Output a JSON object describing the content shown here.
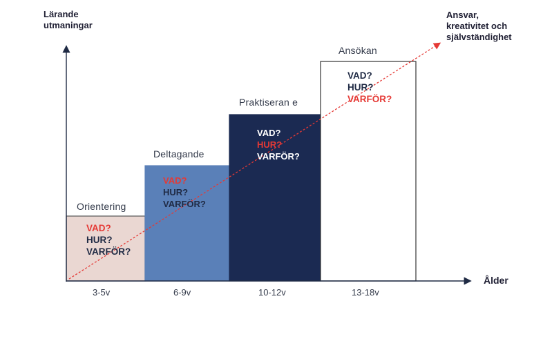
{
  "axes": {
    "y_label_line1": "Lärande",
    "y_label_line2": "utmaningar",
    "x_label": "Ålder",
    "goal_line1": "Ansvar,",
    "goal_line2": "kreativitet och",
    "goal_line3": "självständighet"
  },
  "stages": [
    {
      "title": "Orientering",
      "age": "3-5v",
      "fill": "#ead7d2",
      "stroke": "#555555",
      "questions": [
        {
          "text": "VAD?",
          "color": "#e53935"
        },
        {
          "text": "HUR?",
          "color": "#1f2a44"
        },
        {
          "text": "VARFÖR?",
          "color": "#1f2a44"
        }
      ]
    },
    {
      "title": "Deltagande",
      "age": "6-9v",
      "fill": "#5a80b8",
      "stroke": "#5a80b8",
      "questions": [
        {
          "text": "VAD?",
          "color": "#e53935"
        },
        {
          "text": "HUR?",
          "color": "#1f2a44"
        },
        {
          "text": "VARFÖR?",
          "color": "#1f2a44"
        }
      ]
    },
    {
      "title": "Praktiseran e",
      "age": "10-12v",
      "fill": "#1b2a52",
      "stroke": "#1b2a52",
      "questions": [
        {
          "text": "VAD?",
          "color": "#ffffff"
        },
        {
          "text": "HUR?",
          "color": "#e53935"
        },
        {
          "text": "VARFÖR?",
          "color": "#ffffff"
        }
      ]
    },
    {
      "title": "Ansökan",
      "age": "13-18v",
      "fill": "#ffffff",
      "stroke": "#333333",
      "questions": [
        {
          "text": "VAD?",
          "color": "#1f2a44"
        },
        {
          "text": "HUR?",
          "color": "#1f2a44"
        },
        {
          "text": "VARFÖR?",
          "color": "#e53935"
        }
      ]
    }
  ],
  "colors": {
    "axis": "#1f2a44",
    "trend": "#e53935"
  }
}
